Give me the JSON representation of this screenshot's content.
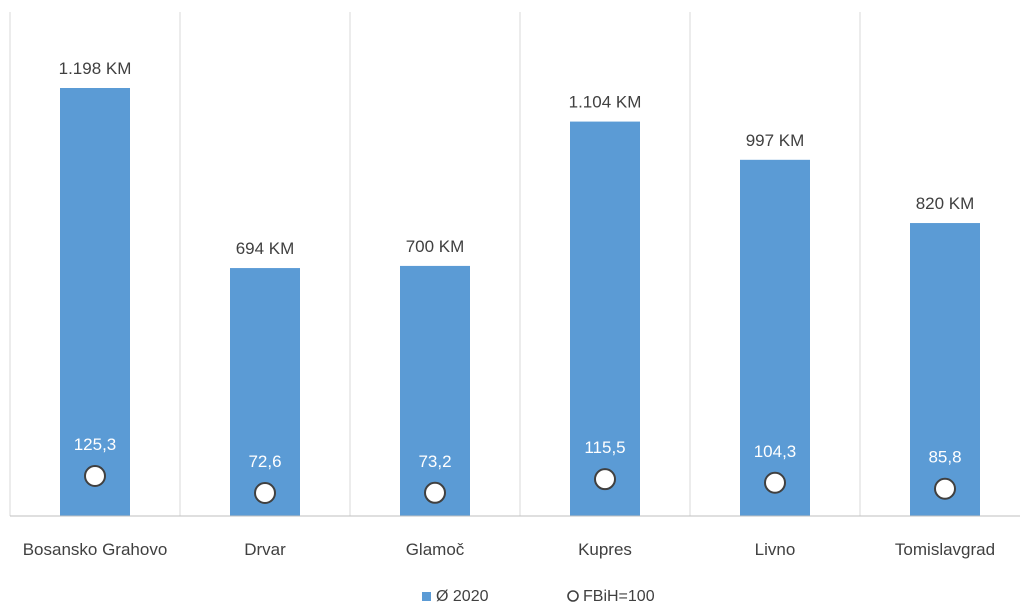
{
  "chart_data": {
    "type": "bar",
    "categories": [
      "Bosansko Grahovo",
      "Drvar",
      "Glamoč",
      "Kupres",
      "Livno",
      "Tomislavgrad"
    ],
    "series": [
      {
        "name": "Ø 2020",
        "values": [
          1198,
          694,
          700,
          1104,
          997,
          820
        ],
        "labels": [
          "1.198 KM",
          "694 KM",
          "700 KM",
          "1.104 KM",
          "997 KM",
          "820 KM"
        ],
        "color": "#5b9bd5"
      },
      {
        "name": "FBiH=100",
        "values": [
          125.3,
          72.6,
          73.2,
          115.5,
          104.3,
          85.8
        ],
        "labels": [
          "125,3",
          "72,6",
          "73,2",
          "115,5",
          "104,3",
          "85,8"
        ],
        "marker": "circle",
        "color": "#ffffff"
      }
    ],
    "ylim": [
      0,
      1300
    ],
    "grid": "vertical separators between categories",
    "legend": "bottom"
  }
}
